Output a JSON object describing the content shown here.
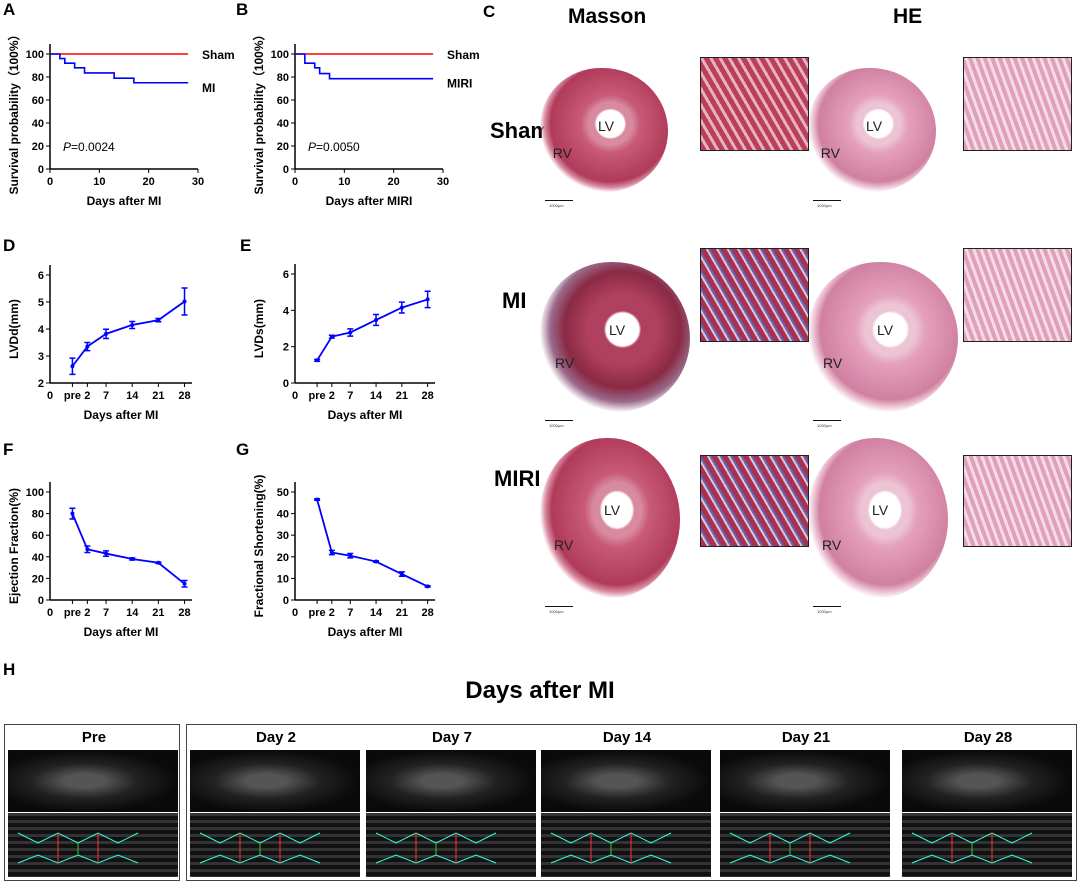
{
  "panel_labels": [
    "A",
    "B",
    "C",
    "D",
    "E",
    "F",
    "G",
    "H"
  ],
  "chart_data": [
    {
      "id": "A",
      "type": "line",
      "step": true,
      "xlabel": "Days after MI",
      "ylabel": "Survival probability（100%）",
      "xlim": [
        0,
        30
      ],
      "ylim": [
        0,
        100
      ],
      "xticks": [
        0,
        10,
        20,
        30
      ],
      "yticks": [
        0,
        20,
        40,
        60,
        80,
        100
      ],
      "annotation": "P=0.0024",
      "annotation_italic": "P",
      "annotation_rest": "=0.0024",
      "series": [
        {
          "name": "Sham",
          "color": "#ff0000",
          "x": [
            0,
            28
          ],
          "y": [
            100,
            100
          ]
        },
        {
          "name": "MI",
          "color": "#0000ff",
          "x": [
            0,
            2,
            3,
            5,
            7,
            13,
            17,
            28
          ],
          "y": [
            100,
            96,
            92,
            88,
            83.5,
            79,
            75,
            75
          ]
        }
      ]
    },
    {
      "id": "B",
      "type": "line",
      "step": true,
      "xlabel": "Days after MIRI",
      "ylabel": "Survival probability（100%）",
      "xlim": [
        0,
        30
      ],
      "ylim": [
        0,
        100
      ],
      "xticks": [
        0,
        10,
        20,
        30
      ],
      "yticks": [
        0,
        20,
        40,
        60,
        80,
        100
      ],
      "annotation_italic": "P",
      "annotation_rest": "=0.0050",
      "series": [
        {
          "name": "Sham",
          "color": "#ff0000",
          "x": [
            0,
            28
          ],
          "y": [
            100,
            100
          ]
        },
        {
          "name": "MIRI",
          "color": "#0000ff",
          "x": [
            0,
            2,
            4,
            5,
            7,
            28
          ],
          "y": [
            100,
            92,
            88,
            83,
            78.5,
            78.5
          ]
        }
      ]
    },
    {
      "id": "D",
      "type": "line",
      "xlabel": "Days after MI",
      "ylabel": "LVDd(mm)",
      "categories": [
        "pre",
        "2",
        "7",
        "14",
        "21",
        "28"
      ],
      "origin_label": "0",
      "ylim": [
        2,
        6
      ],
      "yticks": [
        2,
        3,
        4,
        5,
        6
      ],
      "series": [
        {
          "color": "#0000ff",
          "values": [
            2.62,
            3.35,
            3.82,
            4.15,
            4.33,
            5.02
          ],
          "error": [
            0.3,
            0.15,
            0.17,
            0.13,
            0.06,
            0.5
          ]
        }
      ]
    },
    {
      "id": "E",
      "type": "line",
      "xlabel": "Days after MI",
      "ylabel": "LVDs(mm)",
      "categories": [
        "pre",
        "2",
        "7",
        "14",
        "21",
        "28"
      ],
      "origin_label": "0",
      "ylim": [
        0,
        6
      ],
      "yticks": [
        0,
        2,
        4,
        6
      ],
      "series": [
        {
          "color": "#0000ff",
          "values": [
            1.25,
            2.55,
            2.78,
            3.47,
            4.15,
            4.6
          ],
          "error": [
            0.05,
            0.08,
            0.2,
            0.3,
            0.3,
            0.45
          ]
        }
      ]
    },
    {
      "id": "F",
      "type": "line",
      "xlabel": "Days after MI",
      "ylabel": "Ejection Fraction(%)",
      "categories": [
        "pre",
        "2",
        "7",
        "14",
        "21",
        "28"
      ],
      "origin_label": "0",
      "ylim": [
        0,
        100
      ],
      "yticks": [
        0,
        20,
        40,
        60,
        80,
        100
      ],
      "series": [
        {
          "color": "#0000ff",
          "values": [
            80,
            47,
            43,
            38,
            34.5,
            15
          ],
          "error": [
            5,
            3,
            2.5,
            1,
            0.6,
            3
          ]
        }
      ]
    },
    {
      "id": "G",
      "type": "line",
      "xlabel": "Days after MI",
      "ylabel": "Fractional Shortening(%)",
      "categories": [
        "pre",
        "2",
        "7",
        "14",
        "21",
        "28"
      ],
      "origin_label": "0",
      "ylim": [
        0,
        50
      ],
      "yticks": [
        0,
        10,
        20,
        30,
        40,
        50
      ],
      "series": [
        {
          "color": "#0000ff",
          "values": [
            46.5,
            22,
            20.5,
            17.8,
            12,
            6.3
          ],
          "error": [
            0.3,
            1,
            1,
            0.3,
            1,
            0.3
          ]
        }
      ]
    }
  ],
  "histology": {
    "columns": [
      "Masson",
      "HE"
    ],
    "rows": [
      "Sham",
      "MI",
      "MIRI"
    ],
    "lv": "LV",
    "rv": "RV",
    "scale_bar": "1000μm"
  },
  "echo": {
    "title": "Days after MI",
    "frames": [
      "Pre",
      "Day 2",
      "Day 7",
      "Day 14",
      "Day 21",
      "Day 28"
    ]
  }
}
